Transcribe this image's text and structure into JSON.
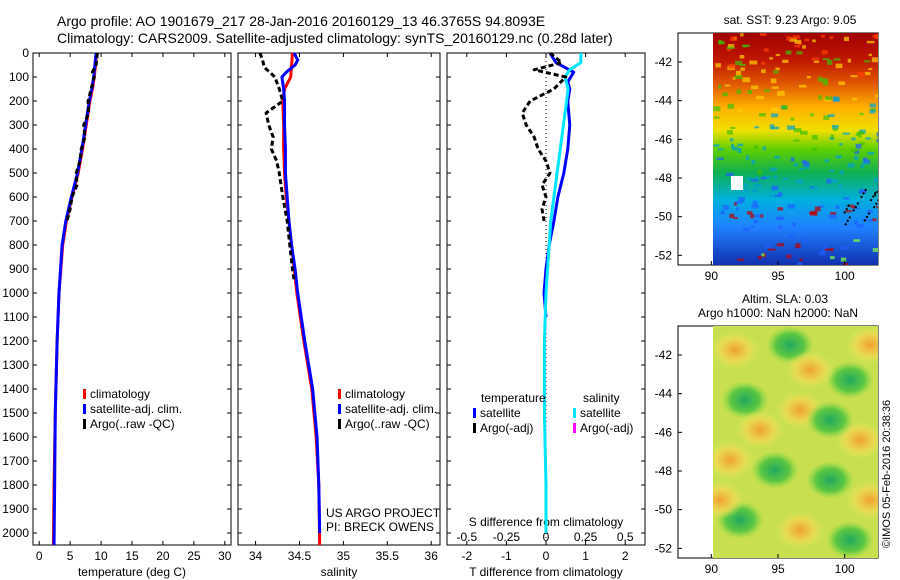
{
  "header": {
    "title_line1": "Argo profile: AO 1901679_217 28-Jan-2016 20160129_13 46.3765S 94.8093E",
    "title_line2": "Climatology: CARS2009. Satellite-adjusted climatology: synTS_20160129.nc (0.28d later)"
  },
  "colors": {
    "climatology": "#ff0000",
    "satellite": "#0000ff",
    "satellite_diff": "#00e5ff",
    "argo": "#000000",
    "argo_salinity_diff": "#ff00ff"
  },
  "credits": {
    "project": "US ARGO PROJECT",
    "pi": "PI: BRECK OWENS",
    "imos": "©IMOS 05-Feb-2016 20:38:36"
  },
  "chart_data": [
    {
      "type": "line",
      "panel": "temperature",
      "xlabel": "temperature (deg C)",
      "xlim": [
        -1,
        31
      ],
      "xticks": [
        0,
        5,
        10,
        15,
        20,
        25,
        30
      ],
      "ylim": [
        2050,
        0
      ],
      "yticks": [
        0,
        100,
        200,
        300,
        400,
        500,
        600,
        700,
        800,
        900,
        1000,
        1100,
        1200,
        1300,
        1400,
        1500,
        1600,
        1700,
        1800,
        1900,
        2000
      ],
      "legend": [
        "climatology",
        "satellite-adj. clim.",
        "Argo(..raw -QC)"
      ],
      "series": [
        {
          "name": "climatology",
          "color": "#ff0000",
          "depth": [
            0,
            50,
            100,
            150,
            200,
            300,
            400,
            500,
            600,
            700,
            800,
            1000,
            1200,
            1500,
            1800,
            2050
          ],
          "values": [
            9.3,
            9.1,
            8.9,
            8.6,
            8.2,
            7.6,
            7.0,
            6.3,
            5.3,
            4.4,
            3.8,
            3.2,
            2.9,
            2.6,
            2.4,
            2.3
          ]
        },
        {
          "name": "satellite-adj. clim.",
          "color": "#0000ff",
          "depth": [
            0,
            50,
            100,
            150,
            200,
            300,
            400,
            500,
            600,
            700,
            800,
            1000,
            1200,
            1500,
            1800,
            2050
          ],
          "values": [
            9.2,
            9.0,
            8.8,
            8.5,
            8.1,
            7.5,
            6.9,
            6.2,
            5.2,
            4.3,
            3.7,
            3.2,
            2.9,
            2.6,
            2.5,
            2.4
          ]
        },
        {
          "name": "Argo(..raw -QC)",
          "color": "#000000",
          "depth": [
            0,
            50,
            80,
            100,
            150,
            200,
            250,
            300,
            350,
            400,
            450,
            500,
            550,
            600,
            650,
            700
          ],
          "values": [
            9.4,
            9.2,
            8.6,
            8.9,
            8.4,
            7.9,
            8.0,
            7.2,
            7.4,
            6.8,
            6.6,
            6.0,
            6.1,
            5.3,
            5.0,
            4.5
          ]
        }
      ]
    },
    {
      "type": "line",
      "panel": "salinity",
      "xlabel": "salinity",
      "xlim": [
        33.8,
        36.1
      ],
      "xticks": [
        34,
        34.5,
        35,
        35.5,
        36
      ],
      "ylim": [
        2050,
        0
      ],
      "legend": [
        "climatology",
        "satellite-adj. clim.",
        "Argo(..raw -QC)"
      ],
      "series": [
        {
          "name": "climatology",
          "color": "#ff0000",
          "depth": [
            0,
            100,
            150,
            200,
            300,
            400,
            500,
            600,
            700,
            800,
            900,
            1000,
            1200,
            1400,
            1600,
            1800,
            2050
          ],
          "values": [
            34.42,
            34.4,
            34.33,
            34.31,
            34.32,
            34.32,
            34.33,
            34.35,
            34.38,
            34.41,
            34.44,
            34.47,
            34.55,
            34.64,
            34.69,
            34.72,
            34.73
          ]
        },
        {
          "name": "satellite-adj. clim.",
          "color": "#0000ff",
          "depth": [
            0,
            30,
            50,
            80,
            100,
            150,
            200,
            300,
            400,
            500,
            600,
            700,
            800,
            900,
            1000,
            1200,
            1400,
            1600,
            1800,
            2000
          ],
          "values": [
            34.44,
            34.48,
            34.45,
            34.35,
            34.3,
            34.32,
            34.33,
            34.33,
            34.34,
            34.34,
            34.36,
            34.38,
            34.41,
            34.45,
            34.48,
            34.56,
            34.65,
            34.7,
            34.72,
            34.73
          ]
        },
        {
          "name": "Argo(..raw -QC)",
          "color": "#000000",
          "depth": [
            0,
            30,
            60,
            100,
            150,
            200,
            250,
            300,
            350,
            400,
            450,
            500,
            600,
            700,
            800,
            900,
            950
          ],
          "values": [
            34.05,
            34.08,
            34.1,
            34.22,
            34.27,
            34.31,
            34.12,
            34.15,
            34.2,
            34.18,
            34.24,
            34.27,
            34.31,
            34.36,
            34.39,
            34.42,
            34.44
          ]
        }
      ],
      "annotations": [
        "US ARGO PROJECT",
        "PI: BRECK OWENS"
      ]
    },
    {
      "type": "line",
      "panel": "difference",
      "xlabel": "T difference from climatology",
      "xlabel2": "S difference from climatology",
      "xlim": [
        -2.5,
        2.5
      ],
      "xticks": [
        -2,
        -1,
        0,
        1,
        2
      ],
      "xticks_s": [
        -0.5,
        -0.25,
        0,
        0.25,
        0.5
      ],
      "ylim": [
        2050,
        0
      ],
      "legend_titles": [
        "temperature",
        "salinity"
      ],
      "legend": [
        "satellite",
        "Argo(-adj)",
        "satellite",
        "Argo(-adj)"
      ],
      "series": [
        {
          "name": "temperature satellite",
          "color": "#0000ff",
          "depth": [
            0,
            40,
            80,
            120,
            150,
            200,
            300,
            400,
            500,
            600,
            700,
            800,
            900,
            1000,
            1100
          ],
          "values": [
            0.1,
            0.25,
            0.7,
            0.55,
            0.6,
            0.55,
            0.6,
            0.55,
            0.45,
            0.3,
            0.2,
            0.08,
            0.0,
            -0.05,
            0.0
          ]
        },
        {
          "name": "salinity satellite",
          "color": "#00e5ff",
          "depth": [
            0,
            40,
            70,
            100,
            150,
            200,
            300,
            400,
            500,
            600,
            700,
            800,
            900,
            1000,
            1200,
            1500,
            1800,
            2000
          ],
          "values": [
            0.22,
            0.22,
            0.15,
            0.12,
            0.14,
            0.13,
            0.11,
            0.09,
            0.07,
            0.05,
            0.03,
            0.02,
            0.01,
            0.0,
            -0.01,
            -0.01,
            0.0,
            0.0
          ]
        },
        {
          "name": "temperature Argo(-adj)",
          "color": "#000000",
          "depth": [
            0,
            40,
            70,
            100,
            150,
            200,
            250,
            300,
            350,
            400,
            450,
            500,
            550,
            600,
            650,
            700
          ],
          "values": [
            0.1,
            0.4,
            -0.3,
            0.5,
            0.2,
            -0.4,
            -0.6,
            -0.5,
            -0.3,
            -0.2,
            0.0,
            0.1,
            -0.1,
            0.0,
            -0.1,
            -0.05
          ]
        }
      ]
    },
    {
      "type": "heatmap",
      "panel": "sst_map",
      "title": "sat. SST: 9.23 Argo: 9.05",
      "xlim": [
        87.5,
        102.5
      ],
      "ylim": [
        -52.5,
        -40.5
      ],
      "xticks": [
        90,
        95,
        100
      ],
      "yticks": [
        -42,
        -44,
        -46,
        -48,
        -50,
        -52
      ]
    },
    {
      "type": "heatmap",
      "panel": "sla_map",
      "title": "Altim. SLA: 0.03",
      "subtitle": "Argo h1000: NaN h2000: NaN",
      "xlim": [
        87.5,
        102.5
      ],
      "ylim": [
        -52.5,
        -40.5
      ],
      "xticks": [
        90,
        95,
        100
      ],
      "yticks": [
        -42,
        -44,
        -46,
        -48,
        -50,
        -52
      ]
    }
  ]
}
